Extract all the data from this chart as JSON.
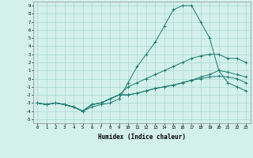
{
  "title": "",
  "xlabel": "Humidex (Indice chaleur)",
  "ylabel": "",
  "xlim": [
    -0.5,
    23.5
  ],
  "ylim": [
    -5.5,
    9.5
  ],
  "xtick_labels": [
    "0",
    "1",
    "2",
    "3",
    "4",
    "5",
    "6",
    "7",
    "8",
    "9",
    "10",
    "11",
    "12",
    "13",
    "14",
    "15",
    "16",
    "17",
    "18",
    "19",
    "20",
    "21",
    "22",
    "23"
  ],
  "ytick_labels": [
    "9",
    "8",
    "7",
    "6",
    "5",
    "4",
    "3",
    "2",
    "1",
    "0",
    "-1",
    "-2",
    "-3",
    "-4",
    "-5"
  ],
  "ytick_values": [
    9,
    8,
    7,
    6,
    5,
    4,
    3,
    2,
    1,
    0,
    -1,
    -2,
    -3,
    -4,
    -5
  ],
  "xtick_values": [
    0,
    1,
    2,
    3,
    4,
    5,
    6,
    7,
    8,
    9,
    10,
    11,
    12,
    13,
    14,
    15,
    16,
    17,
    18,
    19,
    20,
    21,
    22,
    23
  ],
  "background_color": "#d4f0eb",
  "grid_color": "#a8d8d0",
  "line_color": "#1a7a6e",
  "lines": [
    [
      -3,
      -3.2,
      -3,
      -3.2,
      -3.5,
      -4,
      -3.5,
      -3.2,
      -3,
      -2.5,
      -0.5,
      1.5,
      3,
      4.5,
      6.5,
      8.5,
      9,
      9,
      7,
      5,
      1,
      -0.5,
      -1,
      -1.5
    ],
    [
      -3,
      -3.2,
      -3,
      -3.2,
      -3.5,
      -4,
      -3.2,
      -3,
      -2.5,
      -2,
      -1,
      -0.5,
      0,
      0.5,
      1,
      1.5,
      2,
      2.5,
      2.8,
      3,
      3,
      2.5,
      2.5,
      2
    ],
    [
      -3,
      -3.2,
      -3,
      -3.2,
      -3.5,
      -4,
      -3.2,
      -3,
      -2.5,
      -2,
      -2,
      -1.8,
      -1.5,
      -1.2,
      -1,
      -0.8,
      -0.5,
      -0.2,
      0.2,
      0.5,
      1,
      0.8,
      0.5,
      0.2
    ],
    [
      -3,
      -3.2,
      -3,
      -3.2,
      -3.5,
      -4,
      -3.2,
      -3,
      -2.5,
      -2,
      -2,
      -1.8,
      -1.5,
      -1.2,
      -1,
      -0.8,
      -0.5,
      -0.2,
      0,
      0.2,
      0.3,
      0.2,
      0,
      -0.5
    ]
  ]
}
